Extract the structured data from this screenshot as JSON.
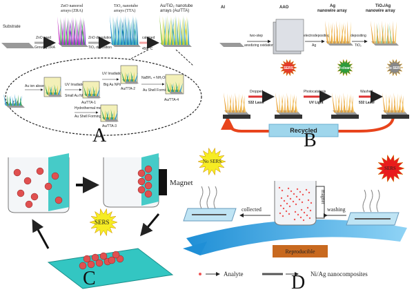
{
  "panel_a": {
    "letter": "A",
    "substrate": "Substrate",
    "zra": [
      "ZnO nanorod",
      "arrays (ZRA)"
    ],
    "tta": [
      "TiO₂ nanotube",
      "arrays (TTA)"
    ],
    "au_tta": [
      "Au/TiO₂ nanotube",
      "arrays (Au/TTA)"
    ],
    "arrow_1": [
      "ZnO seed",
      "Growing ZRA"
    ],
    "arrow_2": [
      "ZnO dissolution",
      "TiO₂ deposition"
    ],
    "arrow_3": [
      "calcined",
      "450 °C"
    ],
    "inset": {
      "tta": "TTA",
      "absorption": "Au ion absorption",
      "uv_1": "UV Irradiation",
      "small_np": "Small Au NPs",
      "au_tta_1": "Au/TTA-1",
      "uv_2": "UV Irradiation",
      "big_np": "Big Au NPs",
      "au_tta_2": "Au/TTA-2",
      "hydrothermal": "Hydrothermal method",
      "shell_1": "Au Shell Forming",
      "au_tta_3": "Au/TTA-3",
      "reductant": "NaBH₄ + NH₂OH",
      "shell_2": "Au Shell Forming",
      "au_tta_4": "Au/TTA-4"
    }
  },
  "panel_b": {
    "letter": "B",
    "al": "Al",
    "aao": "AAO",
    "ag": [
      "Ag",
      "nanowire array"
    ],
    "tio2_ag": [
      "TiO₂/Ag",
      "nanowire array"
    ],
    "arrow_1": [
      "two-step",
      "anodizing oxidation"
    ],
    "arrow_2": [
      "electrodepositing",
      "Ag"
    ],
    "arrow_3": [
      "depositing",
      "TiO₂"
    ],
    "sers": "SERS",
    "self_cleaning": "Self-cleaning",
    "no_sers": "No SERS",
    "step_1": [
      "Dropped",
      "532 Laser"
    ],
    "step_2": [
      "Photocatalysis",
      "UV Light"
    ],
    "step_3": [
      "Washed",
      "532 Laser"
    ],
    "recycled": "Recycled"
  },
  "panel_c": {
    "letter": "C",
    "magnet": "Magnet",
    "sers": "SERS"
  },
  "panel_d": {
    "letter": "D",
    "no_sers": "No SERS",
    "sers": "SERS",
    "collected": "collected",
    "washing": "washing",
    "magnet": "magnet",
    "reproducible": "Reproducible",
    "legend": [
      "Analyte",
      "Ni/Ag nanocomposites"
    ]
  }
}
